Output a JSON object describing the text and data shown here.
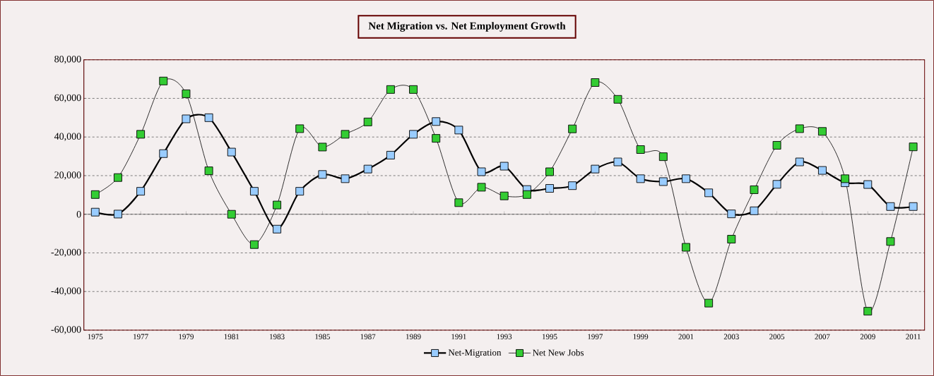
{
  "chart_data": {
    "type": "line",
    "title": "Net Migration vs. Net Employment Growth",
    "x": [
      1975,
      1976,
      1977,
      1978,
      1979,
      1980,
      1981,
      1982,
      1983,
      1984,
      1985,
      1986,
      1987,
      1988,
      1989,
      1990,
      1991,
      1992,
      1993,
      1994,
      1995,
      1996,
      1997,
      1998,
      1999,
      2000,
      2001,
      2002,
      2003,
      2004,
      2005,
      2006,
      2007,
      2008,
      2009,
      2010,
      2011
    ],
    "series": [
      {
        "name": "Net-Migration",
        "color": "#99ccff",
        "values": [
          1100,
          100,
          11900,
          31400,
          49400,
          50000,
          32200,
          11900,
          -7700,
          11900,
          20600,
          18400,
          23400,
          30600,
          41400,
          48000,
          43600,
          22000,
          24900,
          12800,
          13400,
          14800,
          23400,
          27100,
          18400,
          16900,
          18400,
          11100,
          200,
          1800,
          15500,
          27100,
          22700,
          16300,
          15400,
          4000,
          4000
        ]
      },
      {
        "name": "Net New Jobs",
        "color": "#33cc33",
        "values": [
          10200,
          19000,
          41400,
          69000,
          62400,
          22500,
          0,
          -15700,
          4800,
          44300,
          34800,
          41400,
          47800,
          64600,
          64600,
          39300,
          6000,
          14000,
          9500,
          10200,
          22000,
          44200,
          68200,
          59500,
          33500,
          29800,
          -17100,
          -46000,
          -12900,
          12700,
          35700,
          44300,
          42900,
          18400,
          -50200,
          -14100,
          34900
        ]
      }
    ],
    "xlim": [
      1974.5,
      2011.5
    ],
    "xticks": [
      1975,
      1977,
      1979,
      1981,
      1983,
      1985,
      1987,
      1989,
      1991,
      1993,
      1995,
      1997,
      1999,
      2001,
      2003,
      2005,
      2007,
      2009,
      2011
    ],
    "ylim": [
      -60000,
      80000
    ],
    "yticks": [
      {
        "value": -60000,
        "label": "-60,000"
      },
      {
        "value": -40000,
        "label": "-40,000"
      },
      {
        "value": -20000,
        "label": "-20,000"
      },
      0,
      {
        "value": 20000,
        "label": "20,000"
      },
      {
        "value": 40000,
        "label": "40,000"
      },
      {
        "value": 60000,
        "label": "60,000"
      },
      {
        "value": 80000,
        "label": "80,000"
      }
    ],
    "grid": "y",
    "legend": "bottom",
    "marker": "square",
    "line_style": "solid"
  }
}
